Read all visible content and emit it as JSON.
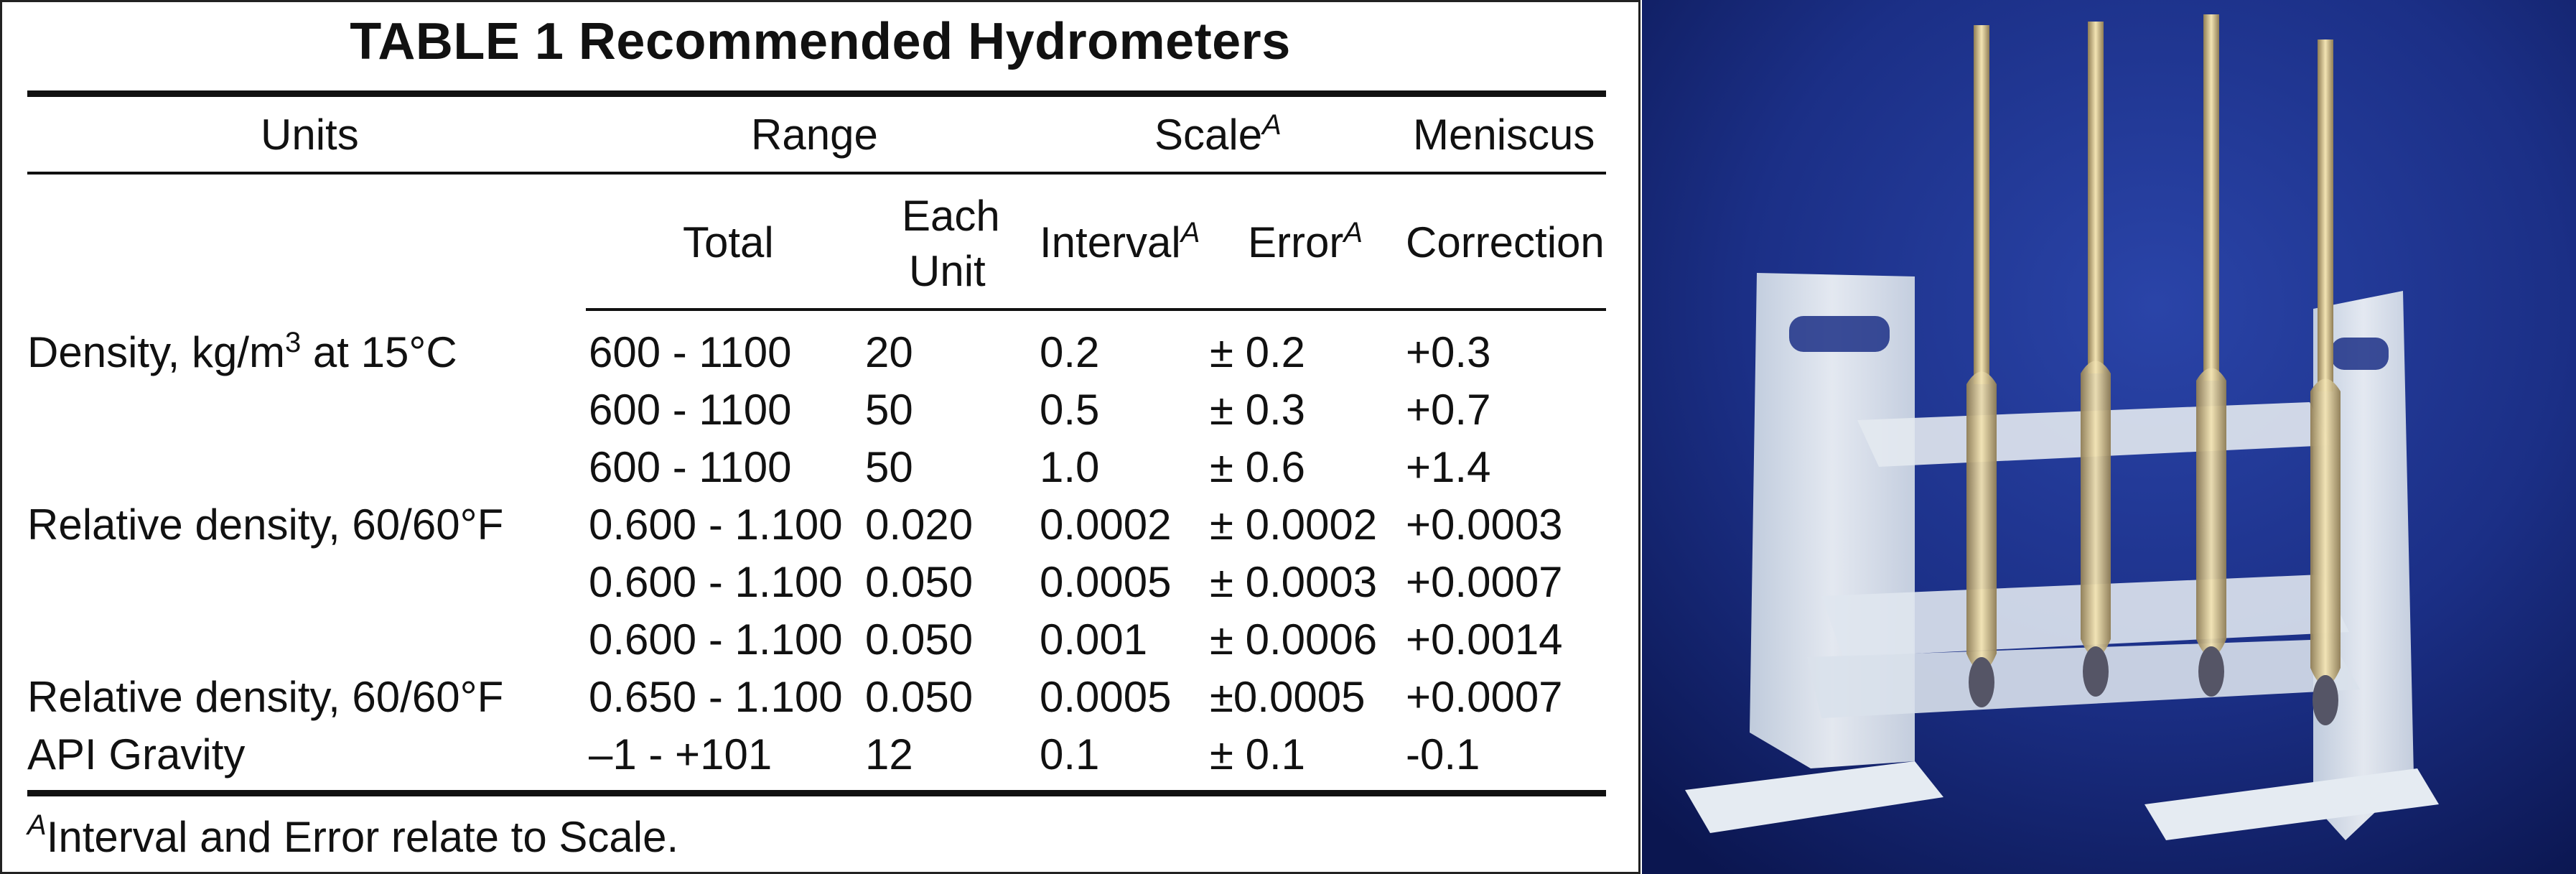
{
  "table": {
    "title": "TABLE 1 Recommended Hydrometers",
    "headers": {
      "units": "Units",
      "range": "Range",
      "scale": "Scale",
      "scale_sup": "A",
      "meniscus": "Meniscus",
      "total": "Total",
      "each": "Each",
      "unit": "Unit",
      "interval": "Interval",
      "interval_sup": "A",
      "error": "Error",
      "error_sup": "A",
      "correction": "Correction"
    },
    "rows": [
      {
        "units": "Density, kg/m",
        "units_sup": "3",
        "units_tail": " at 15°C",
        "total": "600 - 1100",
        "each": "20",
        "interval": "0.2",
        "error": "± 0.2",
        "correction": "+0.3"
      },
      {
        "units": "",
        "total": "600 - 1100",
        "each": "50",
        "interval": "0.5",
        "error": "± 0.3",
        "correction": "+0.7"
      },
      {
        "units": "",
        "total": "600 - 1100",
        "each": "50",
        "interval": "1.0",
        "error": "± 0.6",
        "correction": "+1.4"
      },
      {
        "units": "Relative density, 60/60°F",
        "total": "0.600 - 1.100",
        "each": "0.020",
        "interval": "0.0002",
        "error": "± 0.0002",
        "correction": "+0.0003"
      },
      {
        "units": "",
        "total": "0.600 - 1.100",
        "each": "0.050",
        "interval": "0.0005",
        "error": "± 0.0003",
        "correction": "+0.0007"
      },
      {
        "units": "",
        "total": "0.600 - 1.100",
        "each": "0.050",
        "interval": "0.001",
        "error": "± 0.0006",
        "correction": "+0.0014"
      },
      {
        "units": "Relative density, 60/60°F",
        "total": "0.650 - 1.100",
        "each": "0.050",
        "interval": "0.0005",
        "error": "±0.0005",
        "correction": "+0.0007"
      },
      {
        "units": "API Gravity",
        "total": "–1 - +101",
        "each": "12",
        "interval": "0.1",
        "error": "± 0.1",
        "correction": "-0.1"
      }
    ],
    "footnote_sup": "A",
    "footnote": "Interval and Error relate to Scale."
  },
  "photo": {
    "colors": {
      "background_top": "#1b2f86",
      "background_bottom": "#0b1650",
      "rack": "#e9eef3"
    }
  }
}
